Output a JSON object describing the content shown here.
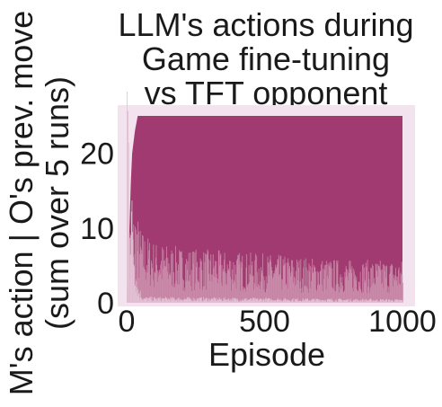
{
  "chart_data": {
    "type": "area",
    "title_lines": [
      "LLM's actions during",
      "Game fine-tuning",
      "vs TFT opponent"
    ],
    "xlabel": "Episode",
    "ylabel_lines": [
      "M's action | O's prev. move",
      "(sum over 5 runs)"
    ],
    "xlim": [
      0,
      1000
    ],
    "ylim": [
      0,
      25
    ],
    "xticks": [
      0,
      500,
      1000
    ],
    "yticks": [
      0,
      10,
      20
    ],
    "xtick_labels": [
      "0",
      "500",
      "1000"
    ],
    "ytick_labels": [
      "0",
      "10",
      "20"
    ],
    "grid": false,
    "series_total": 25,
    "bands": [
      {
        "color": "#a13a70",
        "profile": [
          [
            0,
            0
          ],
          [
            5,
            3
          ],
          [
            10,
            10
          ],
          [
            15,
            16
          ],
          [
            20,
            20
          ],
          [
            30,
            23
          ],
          [
            40,
            25
          ],
          [
            1000,
            25
          ]
        ]
      },
      {
        "color": "#c98aa9",
        "profile": [
          [
            0,
            0
          ],
          [
            5,
            1
          ],
          [
            10,
            3
          ],
          [
            20,
            7
          ],
          [
            30,
            8
          ],
          [
            50,
            6
          ],
          [
            100,
            5
          ],
          [
            200,
            4.5
          ],
          [
            500,
            4
          ],
          [
            800,
            3.5
          ],
          [
            1000,
            3.5
          ]
        ]
      },
      {
        "color": "#e2c0d3",
        "profile": [
          [
            0,
            25
          ],
          [
            5,
            21
          ],
          [
            10,
            14
          ],
          [
            20,
            8
          ],
          [
            30,
            4
          ],
          [
            40,
            1.5
          ],
          [
            60,
            0.5
          ],
          [
            1000,
            0.3
          ]
        ]
      }
    ],
    "background": "#f2e3ee"
  }
}
